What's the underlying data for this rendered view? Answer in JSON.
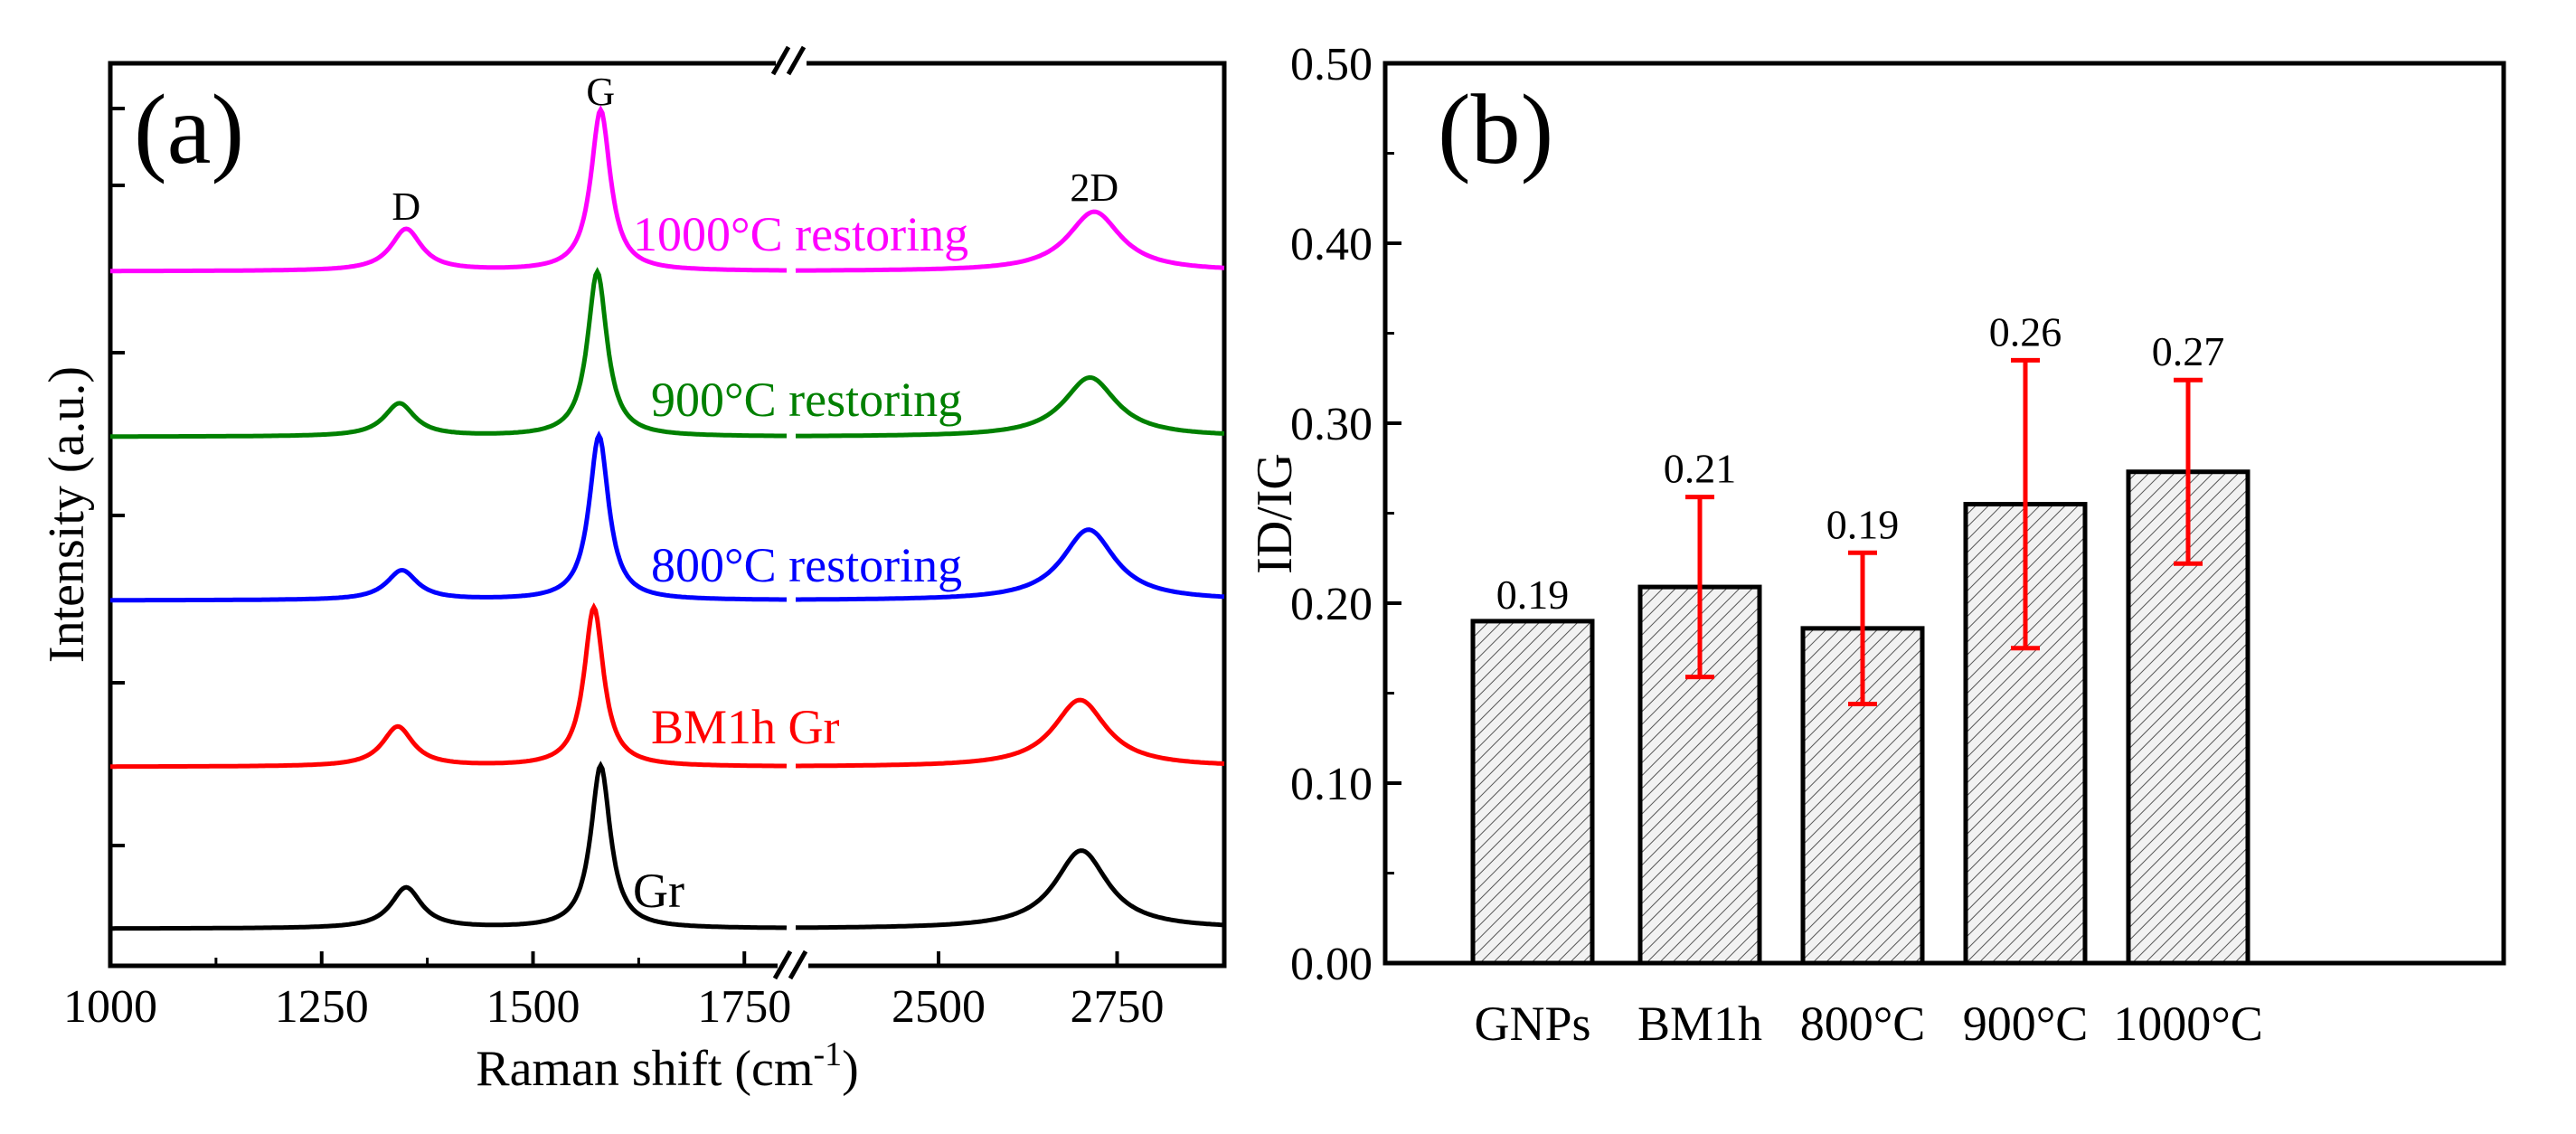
{
  "chart_data": [
    {
      "type": "line",
      "panel_label": "(a)",
      "xlabel": "Raman shift (cm",
      "xlabel_sup": "-1",
      "xlabel_close": ")",
      "ylabel": "Intensity (a.u.)",
      "x_segments": [
        {
          "range": [
            1000,
            1800
          ],
          "ticks": [
            1000,
            1250,
            1500,
            1750
          ]
        },
        {
          "range": [
            2300,
            2900
          ],
          "ticks": [
            2500,
            2750
          ]
        }
      ],
      "tick_labels": [
        "1000",
        "1250",
        "1500",
        "1750",
        "2500",
        "2750"
      ],
      "peak_labels": [
        "D",
        "G",
        "2D"
      ],
      "peak_positions": {
        "D": 1350,
        "G": 1580,
        "2D": 2715
      },
      "series": [
        {
          "name": "Gr",
          "color": "#000000",
          "D": 0.25,
          "G": 1.0,
          "2D": 0.48,
          "d_pos": 1350,
          "g_pos": 1580,
          "d2_pos": 2700
        },
        {
          "name": "BM1h Gr",
          "color": "#ff0000",
          "D": 0.25,
          "G": 1.0,
          "2D": 0.42,
          "d_pos": 1340,
          "g_pos": 1572,
          "d2_pos": 2698
        },
        {
          "name": "800°C restoring",
          "color": "#0000ff",
          "D": 0.18,
          "G": 1.0,
          "2D": 0.43,
          "d_pos": 1345,
          "g_pos": 1578,
          "d2_pos": 2710
        },
        {
          "name": "900°C restoring",
          "color": "#008000",
          "D": 0.2,
          "G": 1.0,
          "2D": 0.36,
          "d_pos": 1342,
          "g_pos": 1576,
          "d2_pos": 2712
        },
        {
          "name": "1000°C restoring",
          "color": "#ff00ff",
          "D": 0.26,
          "G": 1.0,
          "2D": 0.37,
          "d_pos": 1350,
          "g_pos": 1580,
          "d2_pos": 2718
        }
      ]
    },
    {
      "type": "bar",
      "panel_label": "(b)",
      "ylabel": "ID/IG",
      "ylim": [
        0,
        0.5
      ],
      "yticks": [
        "0.00",
        "0.10",
        "0.20",
        "0.30",
        "0.40",
        "0.50"
      ],
      "categories": [
        "GNPs",
        "BM1h",
        "800°C",
        "900°C",
        "1000°C"
      ],
      "values": [
        0.19,
        0.21,
        0.19,
        0.26,
        0.27
      ],
      "value_labels": [
        "0.19",
        "0.21",
        "0.19",
        "0.26",
        "0.27"
      ],
      "bar_heights": [
        0.19,
        0.209,
        0.186,
        0.255,
        0.273
      ],
      "errors": [
        null,
        0.05,
        0.042,
        0.08,
        0.051
      ],
      "error_color": "#ff0000",
      "bar_pattern": "diagonal-hatch"
    }
  ]
}
